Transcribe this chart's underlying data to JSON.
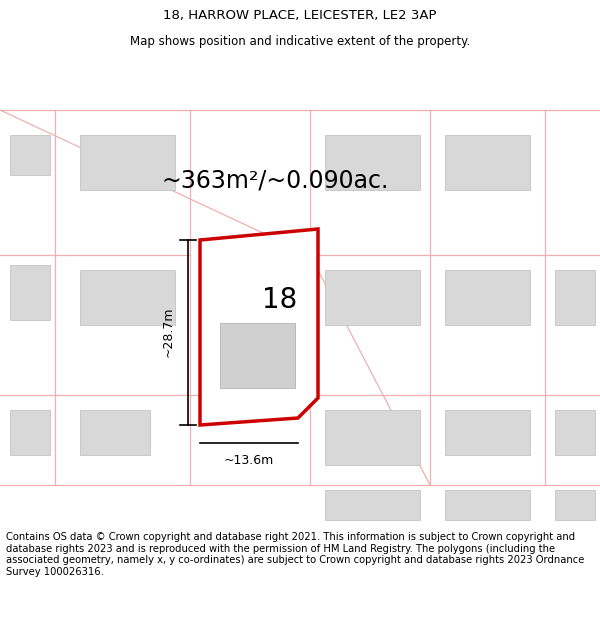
{
  "title": "18, HARROW PLACE, LEICESTER, LE2 3AP",
  "subtitle": "Map shows position and indicative extent of the property.",
  "area_label": "~363m²/~0.090ac.",
  "number_label": "18",
  "dim_height_label": "~28.7m",
  "dim_width_label": "~13.6m",
  "footer": "Contains OS data © Crown copyright and database right 2021. This information is subject to Crown copyright and database rights 2023 and is reproduced with the permission of HM Land Registry. The polygons (including the associated geometry, namely x, y co-ordinates) are subject to Crown copyright and database rights 2023 Ordnance Survey 100026316.",
  "bg_color": "#ffffff",
  "map_bg_color": "#ffffff",
  "road_color": "#f0b0b0",
  "building_color": "#d8d8d8",
  "building_edge_color": "#bbbbbb",
  "plot_outline_color": "#cc0000",
  "dim_line_color": "#000000",
  "title_fontsize": 9.5,
  "subtitle_fontsize": 8.5,
  "area_fontsize": 17,
  "number_fontsize": 20,
  "dim_fontsize": 9,
  "footer_fontsize": 7.2
}
